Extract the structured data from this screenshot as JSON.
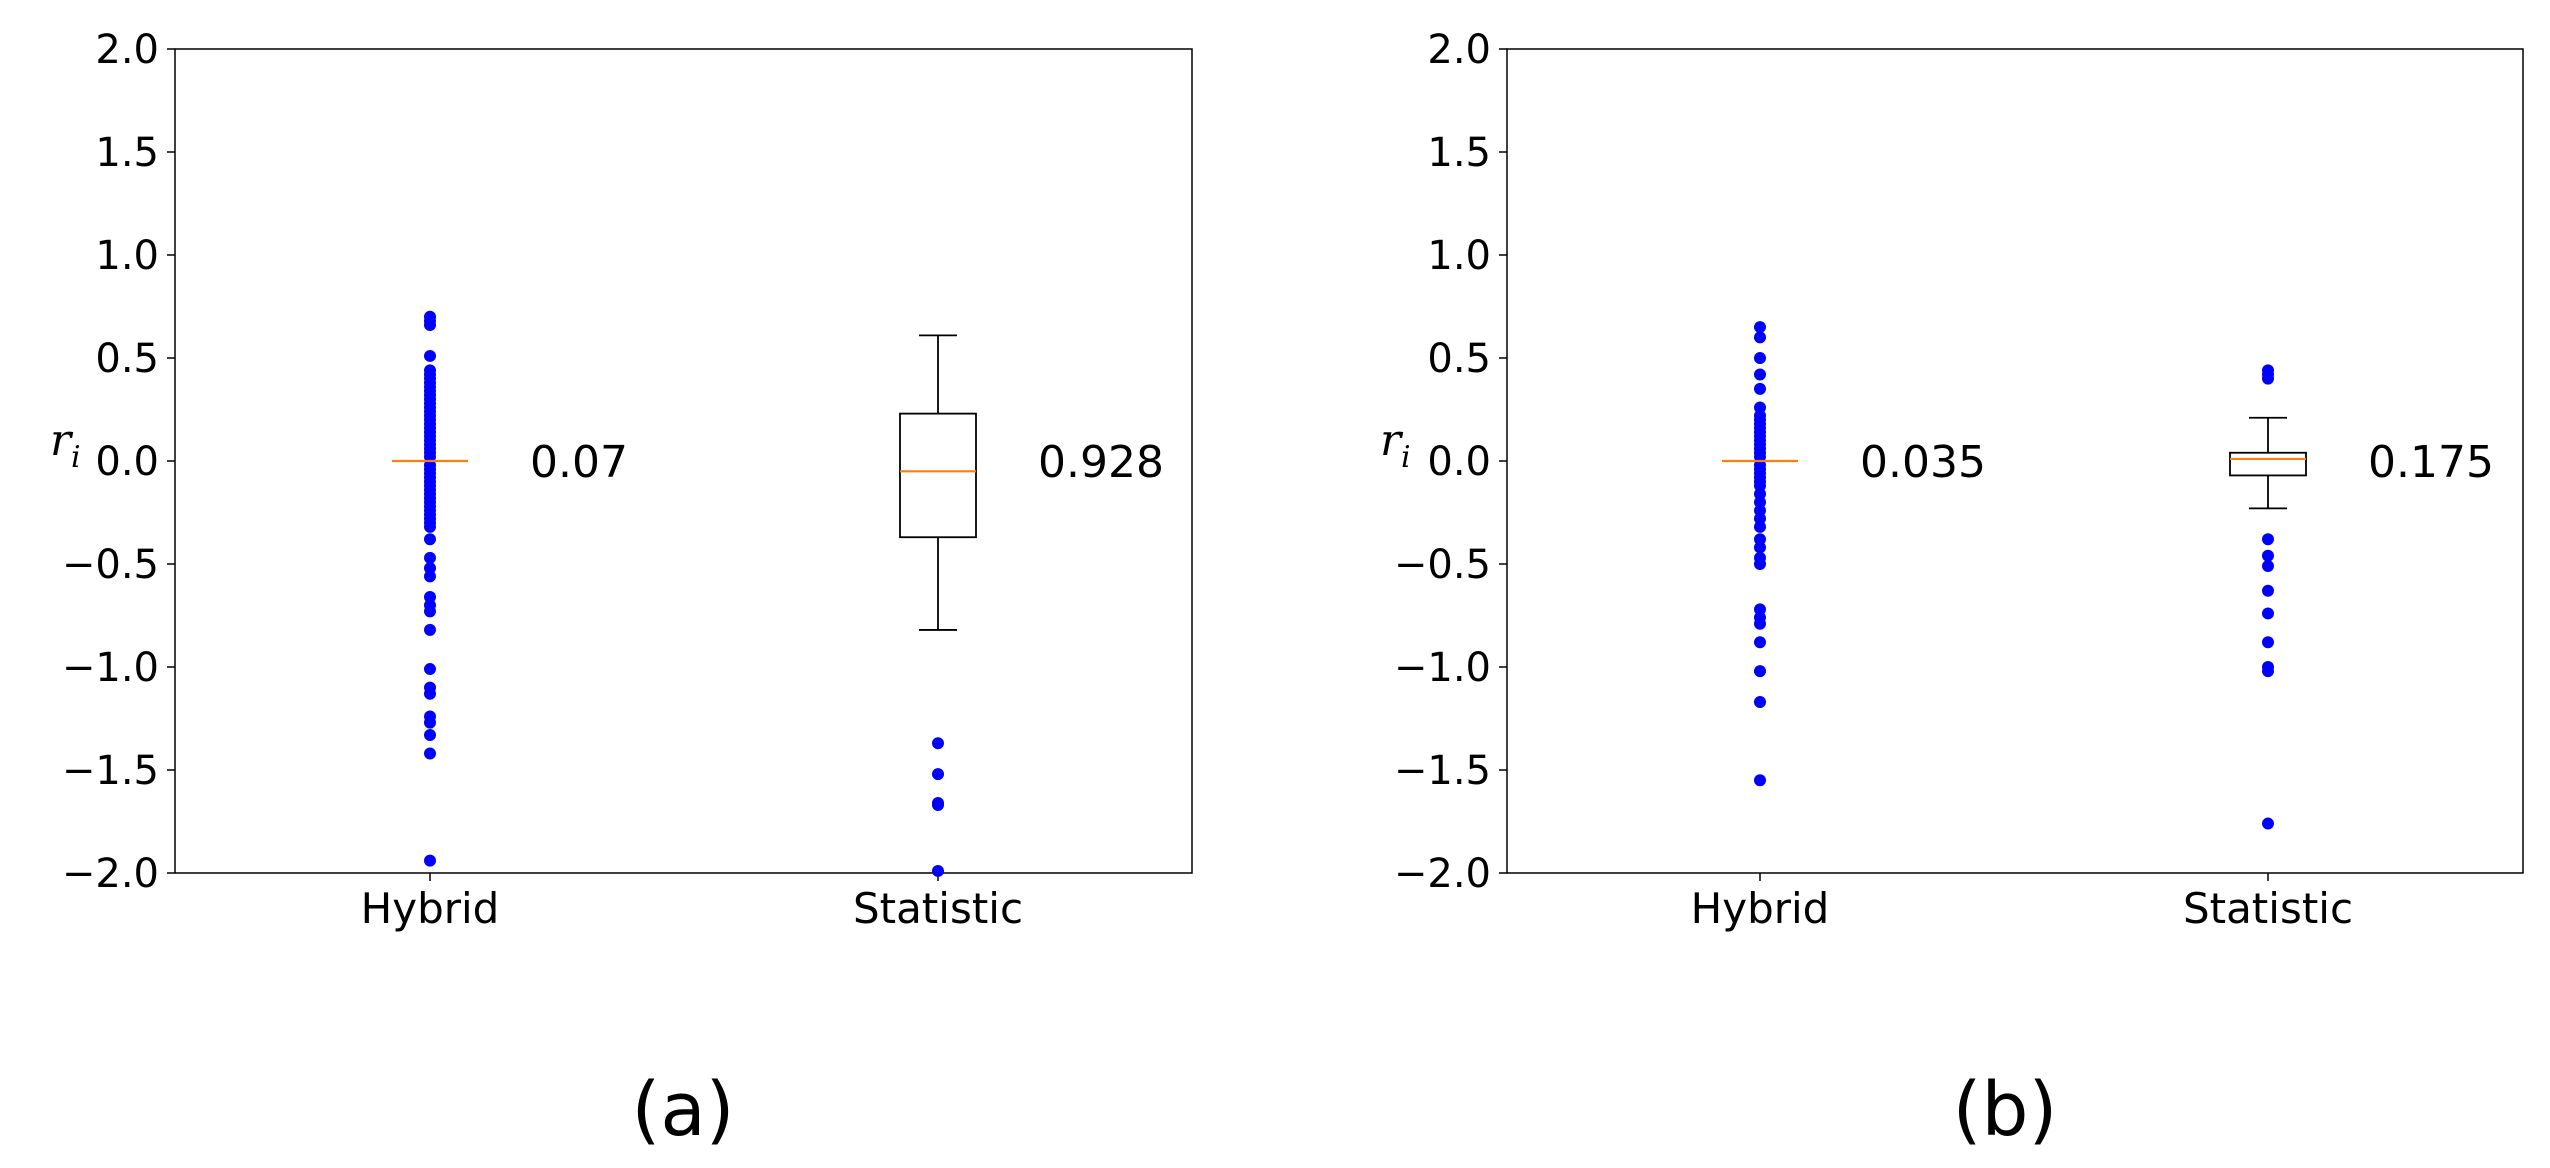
{
  "chart_data": [
    {
      "type": "box",
      "panel_label": "(a)",
      "ylabel": "r",
      "ylabel_sub": "i",
      "ylim": [
        -2.0,
        2.0
      ],
      "yticks": [
        2.0,
        1.5,
        1.0,
        0.5,
        0.0,
        -0.5,
        -1.0,
        -1.5,
        -2.0
      ],
      "ytick_labels": [
        "2.0",
        "1.5",
        "1.0",
        "0.5",
        "0.0",
        "−0.5",
        "−1.0",
        "−1.5",
        "−2.0"
      ],
      "categories": [
        "Hybrid",
        "Statistic"
      ],
      "series": [
        {
          "name": "Hybrid",
          "value_label": "0.07",
          "q1": 0.0,
          "median": 0.0,
          "q3": 0.0,
          "whisker_low": 0.0,
          "whisker_high": 0.0,
          "outliers": [
            0.7,
            0.68,
            0.66,
            0.51,
            0.44,
            0.42,
            0.4,
            0.38,
            0.36,
            0.34,
            0.32,
            0.3,
            0.28,
            0.26,
            0.24,
            0.22,
            0.2,
            0.18,
            0.16,
            0.14,
            0.12,
            0.1,
            0.08,
            0.06,
            0.04,
            0.02,
            -0.02,
            -0.04,
            -0.06,
            -0.08,
            -0.1,
            -0.12,
            -0.14,
            -0.16,
            -0.18,
            -0.2,
            -0.22,
            -0.24,
            -0.26,
            -0.28,
            -0.3,
            -0.32,
            -0.38,
            -0.47,
            -0.52,
            -0.56,
            -0.66,
            -0.7,
            -0.73,
            -0.82,
            -1.01,
            -1.1,
            -1.13,
            -1.24,
            -1.27,
            -1.33,
            -1.42,
            -1.94
          ]
        },
        {
          "name": "Statistic",
          "value_label": "0.928",
          "q1": -0.37,
          "median": -0.05,
          "q3": 0.23,
          "whisker_low": -0.82,
          "whisker_high": 0.61,
          "outliers": [
            -1.37,
            -1.52,
            -1.66,
            -1.67,
            -1.99
          ]
        }
      ]
    },
    {
      "type": "box",
      "panel_label": "(b)",
      "ylabel": "r",
      "ylabel_sub": "i",
      "ylim": [
        -2.0,
        2.0
      ],
      "yticks": [
        2.0,
        1.5,
        1.0,
        0.5,
        0.0,
        -0.5,
        -1.0,
        -1.5,
        -2.0
      ],
      "ytick_labels": [
        "2.0",
        "1.5",
        "1.0",
        "0.5",
        "0.0",
        "−0.5",
        "−1.0",
        "−1.5",
        "−2.0"
      ],
      "categories": [
        "Hybrid",
        "Statistic"
      ],
      "series": [
        {
          "name": "Hybrid",
          "value_label": "0.035",
          "q1": 0.0,
          "median": 0.0,
          "q3": 0.0,
          "whisker_low": 0.0,
          "whisker_high": 0.0,
          "outliers": [
            0.65,
            0.6,
            0.5,
            0.42,
            0.35,
            0.26,
            0.22,
            0.2,
            0.18,
            0.16,
            0.14,
            0.12,
            0.1,
            0.08,
            0.06,
            0.04,
            0.02,
            -0.02,
            -0.04,
            -0.06,
            -0.08,
            -0.1,
            -0.12,
            -0.16,
            -0.2,
            -0.24,
            -0.28,
            -0.32,
            -0.38,
            -0.42,
            -0.47,
            -0.5,
            -0.72,
            -0.76,
            -0.79,
            -0.88,
            -1.02,
            -1.17,
            -1.55
          ]
        },
        {
          "name": "Statistic",
          "value_label": "0.175",
          "q1": -0.07,
          "median": 0.01,
          "q3": 0.04,
          "whisker_low": -0.23,
          "whisker_high": 0.21,
          "outliers": [
            0.44,
            0.42,
            0.4,
            -0.38,
            -0.46,
            -0.51,
            -0.63,
            -0.74,
            -0.88,
            -1.0,
            -1.02,
            -1.76
          ]
        }
      ]
    }
  ],
  "colors": {
    "outlier": "#0000ff",
    "median": "#ff7f0e",
    "axes": "#000000"
  }
}
